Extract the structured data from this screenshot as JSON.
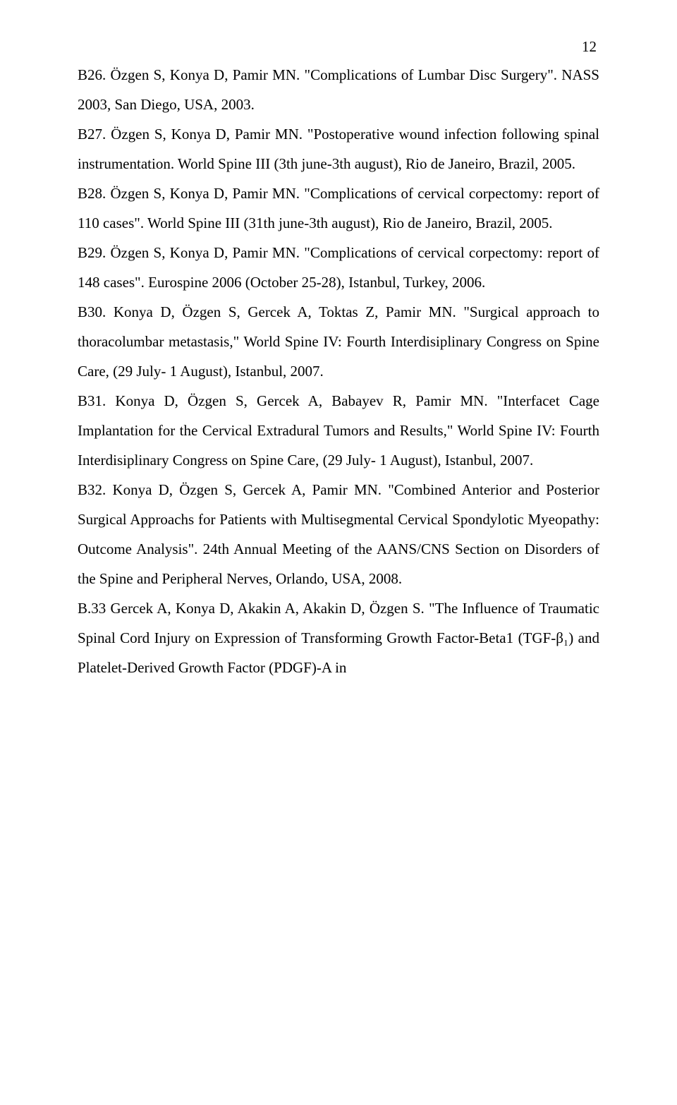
{
  "page_number": "12",
  "references": [
    {
      "label": "B26.",
      "text": " Özgen S, Konya D, Pamir MN. \"Complications of Lumbar Disc Surgery\". NASS 2003, San Diego, USA, 2003."
    },
    {
      "label": "B27.",
      "text": " Özgen S, Konya D, Pamir MN. \"Postoperative wound infection following spinal instrumentation. World Spine III (3th june-3th august), Rio de Janeiro, Brazil, 2005."
    },
    {
      "label": "B28.",
      "text": " Özgen S, Konya D, Pamir MN. \"Complications of cervical corpectomy: report of 110 cases\". World Spine III (31th june-3th august), Rio de Janeiro, Brazil, 2005."
    },
    {
      "label": "B29.",
      "text": " Özgen S, Konya D, Pamir MN. \"Complications of cervical corpectomy: report of 148 cases\". Eurospine 2006 (October 25-28), Istanbul, Turkey, 2006."
    },
    {
      "label": "B30.",
      "text": " Konya D, Özgen S, Gercek A, Toktas Z, Pamir MN. \"Surgical approach to thoracolumbar metastasis,\" World Spine IV: Fourth Interdisiplinary Congress on Spine Care, (29 July- 1 August), Istanbul, 2007."
    },
    {
      "label": "B31.",
      "text": " Konya D, Özgen S, Gercek A, Babayev R, Pamir MN. \"Interfacet Cage Implantation for the Cervical Extradural Tumors and Results,\" World Spine IV: Fourth Interdisiplinary Congress on Spine Care, (29 July- 1 August), Istanbul, 2007."
    },
    {
      "label": "B32.",
      "text": " Konya D, Özgen S, Gercek A, Pamir MN. \"Combined Anterior and Posterior Surgical Approachs for Patients with Multisegmental Cervical Spondylotic Myeopathy: Outcome Analysis\". 24th Annual Meeting of the AANS/CNS Section on Disorders of the Spine and Peripheral Nerves, Orlando, USA, 2008."
    },
    {
      "label": "B.33",
      "text": " Gercek A, Konya D, Akakin A, Akakin D, Özgen S. \"The Influence of Traumatic Spinal Cord Injury on Expression of Transforming Growth Factor-Beta1 (TGF-β₁) and Platelet-Derived Growth Factor (PDGF)-A in"
    }
  ]
}
